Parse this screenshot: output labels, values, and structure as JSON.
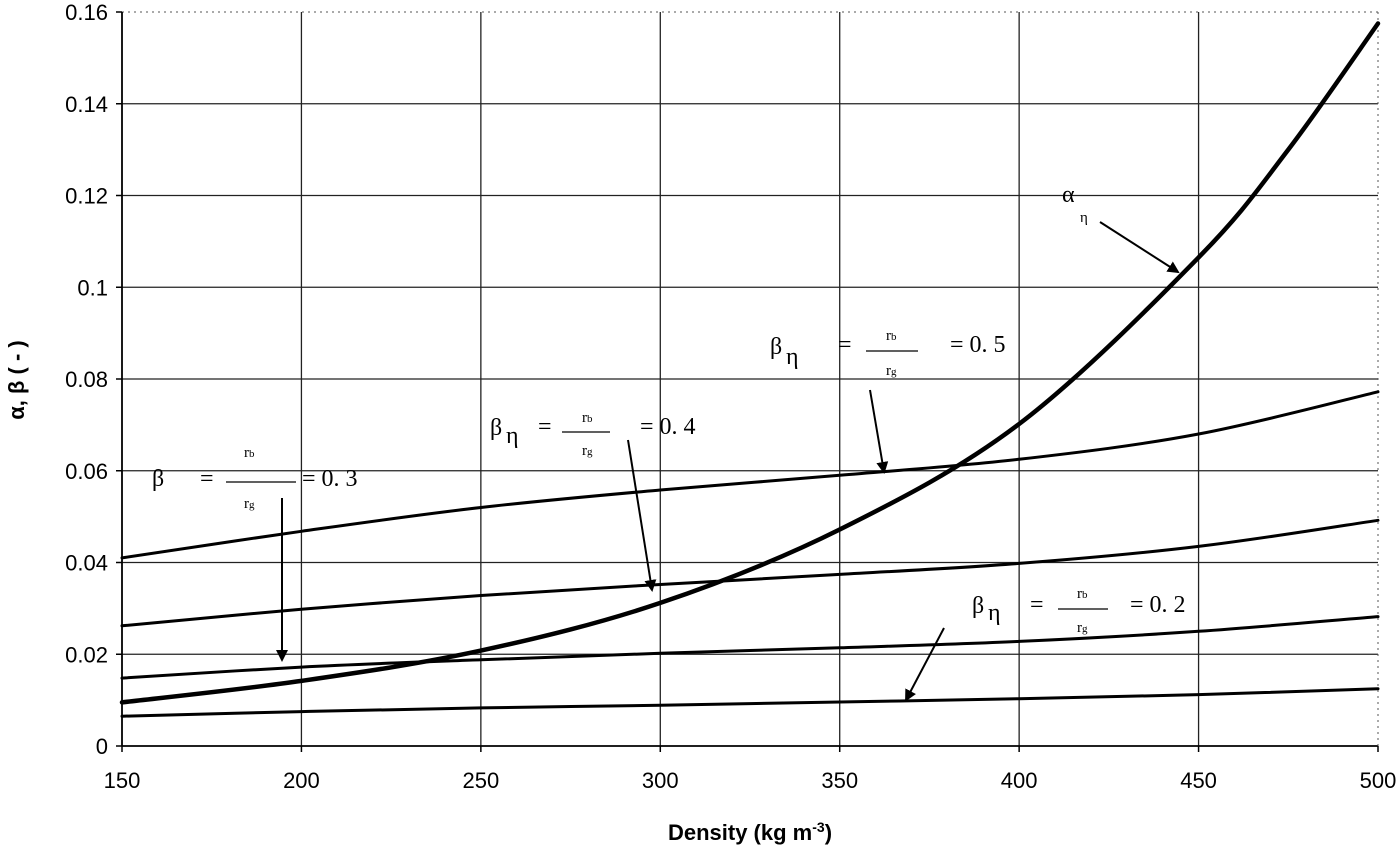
{
  "chart_data": {
    "type": "line",
    "xlabel": "Density (kg m",
    "xlabel_sup": "-3",
    "xlabel_end": ")",
    "ylabel": "α, β ( - )",
    "xlim": [
      150,
      500
    ],
    "ylim": [
      0,
      0.16
    ],
    "x_ticks": [
      "150",
      "200",
      "250",
      "300",
      "350",
      "400",
      "450",
      "500"
    ],
    "y_ticks": [
      "0",
      "0.02",
      "0.04",
      "0.06",
      "0.08",
      "0.1",
      "0.12",
      "0.14",
      "0.16"
    ],
    "grid": true,
    "series": [
      {
        "name": "alpha",
        "x": [
          150,
          200,
          250,
          300,
          350,
          400,
          450,
          475,
          500
        ],
        "values": [
          0.0095,
          0.0142,
          0.0208,
          0.0312,
          0.0472,
          0.0702,
          0.1065,
          0.13,
          0.1575
        ]
      },
      {
        "name": "beta_0.5",
        "x": [
          150,
          200,
          250,
          300,
          350,
          400,
          450,
          500
        ],
        "values": [
          0.041,
          0.0468,
          0.052,
          0.0558,
          0.059,
          0.0625,
          0.068,
          0.0772
        ]
      },
      {
        "name": "beta_0.4",
        "x": [
          150,
          200,
          250,
          300,
          350,
          400,
          450,
          500
        ],
        "values": [
          0.0262,
          0.0298,
          0.0328,
          0.0352,
          0.0374,
          0.0398,
          0.0435,
          0.0492
        ]
      },
      {
        "name": "beta_0.3",
        "x": [
          150,
          200,
          250,
          300,
          350,
          400,
          450,
          500
        ],
        "values": [
          0.0148,
          0.0172,
          0.0188,
          0.0202,
          0.0214,
          0.0228,
          0.025,
          0.0282
        ]
      },
      {
        "name": "beta_0.2",
        "x": [
          150,
          200,
          250,
          300,
          350,
          400,
          450,
          500
        ],
        "values": [
          0.0065,
          0.0075,
          0.0083,
          0.0089,
          0.0096,
          0.0103,
          0.0112,
          0.0125
        ]
      }
    ],
    "annotations": [
      {
        "symbol": "α",
        "subscript": "η"
      },
      {
        "symbol": "β",
        "subscript": "η",
        "eq1": "=",
        "num": "r",
        "num_sub": "b",
        "den": "r",
        "den_sub": "g",
        "value": "= 0. 5"
      },
      {
        "symbol": "β",
        "subscript": "η",
        "eq1": "=",
        "num": "r",
        "num_sub": "b",
        "den": "r",
        "den_sub": "g",
        "value": "= 0. 4"
      },
      {
        "symbol": "β",
        "subscript": "",
        "eq1": "=",
        "num": "r",
        "num_sub": "b",
        "den": "r",
        "den_sub": "g",
        "value": "= 0. 3"
      },
      {
        "symbol": "β",
        "subscript": "η",
        "eq1": "=",
        "num": "r",
        "num_sub": "b",
        "den": "r",
        "den_sub": "g",
        "value": "= 0. 2"
      }
    ]
  }
}
